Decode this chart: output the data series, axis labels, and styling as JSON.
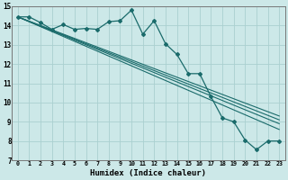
{
  "xlabel": "Humidex (Indice chaleur)",
  "xlim": [
    -0.5,
    23.5
  ],
  "ylim": [
    7,
    15
  ],
  "xticks": [
    0,
    1,
    2,
    3,
    4,
    5,
    6,
    7,
    8,
    9,
    10,
    11,
    12,
    13,
    14,
    15,
    16,
    17,
    18,
    19,
    20,
    21,
    22,
    23
  ],
  "yticks": [
    7,
    8,
    9,
    10,
    11,
    12,
    13,
    14,
    15
  ],
  "bg_color": "#cce8e8",
  "line_color": "#1a6b6b",
  "grid_color": "#aad0d0",
  "main_x": [
    0,
    1,
    2,
    3,
    4,
    5,
    6,
    7,
    8,
    9,
    10,
    11,
    12,
    13,
    14,
    15,
    16,
    17,
    18,
    19,
    20,
    21,
    22,
    23
  ],
  "main_y": [
    14.45,
    14.45,
    14.15,
    13.8,
    14.05,
    13.8,
    13.85,
    13.8,
    14.2,
    14.25,
    14.8,
    13.55,
    14.25,
    13.05,
    12.5,
    11.5,
    11.5,
    10.3,
    9.2,
    9.0,
    8.05,
    7.55,
    8.0,
    8.0
  ],
  "trend1_x": [
    0,
    23
  ],
  "trend1_y": [
    14.45,
    8.6
  ],
  "trend2_x": [
    0,
    23
  ],
  "trend2_y": [
    14.45,
    8.9
  ],
  "trend3_x": [
    0,
    23
  ],
  "trend3_y": [
    14.45,
    9.1
  ],
  "trend4_x": [
    0,
    23
  ],
  "trend4_y": [
    14.45,
    9.3
  ]
}
